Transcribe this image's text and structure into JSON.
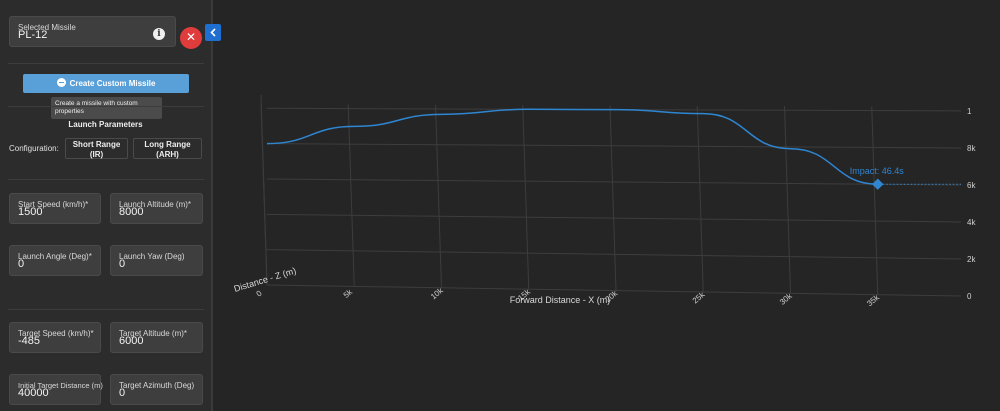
{
  "selected_missile": {
    "label": "Selected Missile",
    "value": "PL-12",
    "info_icon": "i",
    "close_icon": "✕"
  },
  "create_button": {
    "label": "Create Custom Missile"
  },
  "tooltip": {
    "text": "Create a missile with custom properties"
  },
  "launch_parameters": {
    "title": "Launch Parameters",
    "configuration_label": "Configuration:",
    "configurations": [
      "Short Range (IR)",
      "Long Range (ARH)"
    ]
  },
  "fields": {
    "start_speed": {
      "label": "Start Speed (km/h)*",
      "value": "1500"
    },
    "launch_altitude": {
      "label": "Launch Altitude (m)*",
      "value": "8000"
    },
    "launch_angle": {
      "label": "Launch Angle (Deg)*",
      "value": "0"
    },
    "launch_yaw": {
      "label": "Launch Yaw (Deg)",
      "value": "0"
    },
    "target_speed": {
      "label": "Target Speed (km/h)*",
      "value": "-485"
    },
    "target_altitude": {
      "label": "Target Altitude (m)*",
      "value": "6000"
    },
    "initial_target_distance": {
      "label": "Initial Target Distance (m)",
      "value": "40000"
    },
    "target_azimuth": {
      "label": "Target Azimuth (Deg)",
      "value": "0"
    }
  },
  "chart_data": {
    "type": "line",
    "xlabel": "Forward Distance - X (m)",
    "zlabel": "Distance - Z (m)",
    "x_ticks": [
      "0",
      "5k",
      "10k",
      "15k",
      "20k",
      "25k",
      "30k",
      "35k"
    ],
    "y_ticks": [
      "0",
      "2k",
      "4k",
      "6k",
      "8k",
      "1"
    ],
    "x_range": [
      0,
      40000
    ],
    "y_range": [
      0,
      10000
    ],
    "annotation": "Impact: 46.4s",
    "series": [
      {
        "color": "#2f86d0",
        "x": [
          0,
          5000,
          10000,
          15000,
          20000,
          25000,
          30000,
          35000
        ],
        "y": [
          8000,
          9000,
          9700,
          10000,
          10000,
          9800,
          7900,
          6000
        ]
      }
    ],
    "impact_point": {
      "x": 35000,
      "y": 6000
    },
    "colors": {
      "line": "#2f86d0",
      "grid": "#3d3d3d",
      "text": "#d0d0d0"
    }
  }
}
